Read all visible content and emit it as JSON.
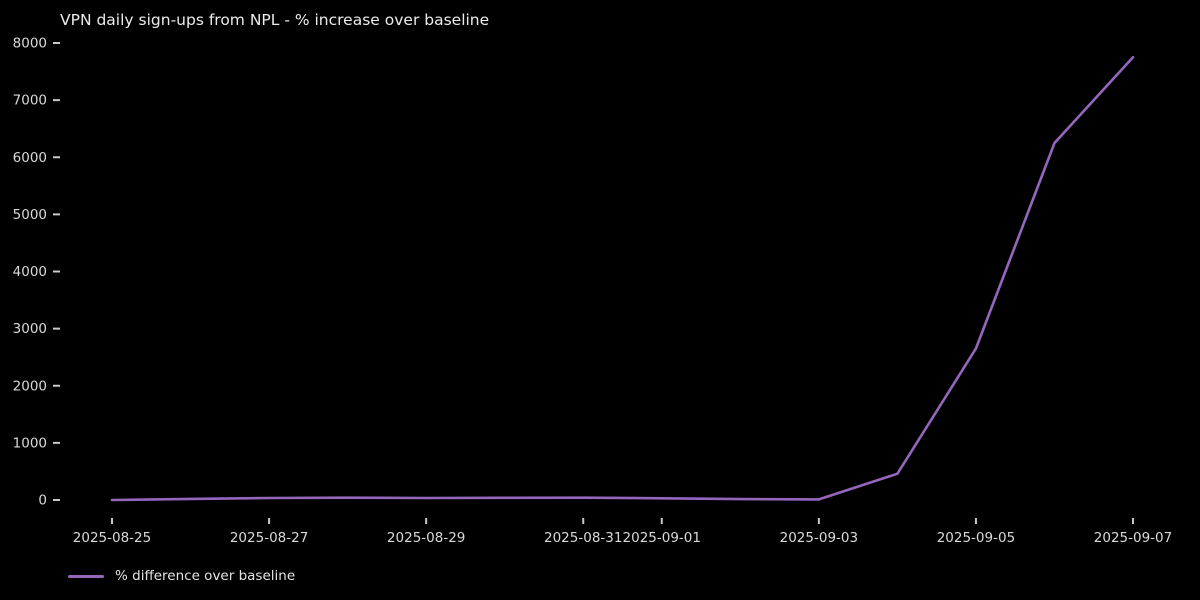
{
  "chart": {
    "title": "VPN daily sign-ups from NPL - % increase over baseline",
    "legend_label": "% difference over baseline"
  },
  "colors": {
    "background": "#000000",
    "line": "#9467bd",
    "title_text": "#ebebeb",
    "tick_text": "#d9d9d9",
    "tick_mark": "#c9c9c9",
    "legend_text": "#e3e3e3"
  },
  "chart_data": {
    "type": "line",
    "title": "VPN daily sign-ups from NPL - % increase over baseline",
    "x": [
      "2025-08-25",
      "2025-08-26",
      "2025-08-27",
      "2025-08-28",
      "2025-08-29",
      "2025-08-30",
      "2025-08-31",
      "2025-09-01",
      "2025-09-02",
      "2025-09-03",
      "2025-09-04",
      "2025-09-05",
      "2025-09-06",
      "2025-09-07"
    ],
    "series": [
      {
        "name": "% difference over baseline",
        "values": [
          0,
          20,
          35,
          40,
          35,
          38,
          40,
          30,
          15,
          10,
          460,
          2650,
          6250,
          7750
        ]
      }
    ],
    "xticks": [
      "2025-08-25",
      "2025-08-27",
      "2025-08-29",
      "2025-08-31",
      "2025-09-01",
      "2025-09-03",
      "2025-09-05",
      "2025-09-07"
    ],
    "yticks": [
      0,
      1000,
      2000,
      3000,
      4000,
      5000,
      6000,
      7000,
      8000
    ],
    "ylim": [
      0,
      8000
    ],
    "xlabel": "",
    "ylabel": "",
    "grid": false,
    "spines": false,
    "legend_position": "lower-left",
    "theme": "dark"
  }
}
